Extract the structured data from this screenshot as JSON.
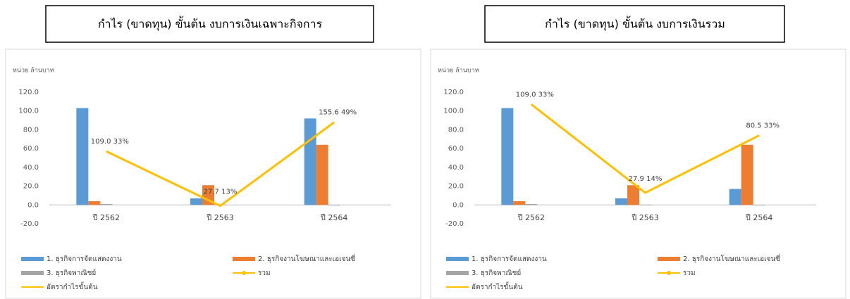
{
  "chart_data": [
    {
      "type": "bar",
      "title": "กำไร (ขาดทุน) ขั้นต้น งบการเงินเฉพาะกิจการ",
      "unit_label": "หน่วย ล้านบาท",
      "categories": [
        "ปี 2562",
        "ปี 2563",
        "ปี 2564"
      ],
      "ylim": [
        -20,
        120
      ],
      "yticks": [
        {
          "value": -20,
          "label": "-20.0"
        },
        {
          "value": 0,
          "label": "0.0"
        },
        {
          "value": 20,
          "label": "20.0"
        },
        {
          "value": 40,
          "label": "40.0"
        },
        {
          "value": 60,
          "label": "60.0"
        },
        {
          "value": 80,
          "label": "80.0"
        },
        {
          "value": 100,
          "label": "100.0"
        },
        {
          "value": 120,
          "label": "120.0"
        }
      ],
      "series": [
        {
          "name": "1. ธุรกิจการจัดแสดงงาน",
          "color": "#5b9bd5",
          "values": [
            103,
            7,
            92
          ]
        },
        {
          "name": "2. ธุรกิจงานโฆษณาและเอเจนซี่",
          "color": "#ed7d31",
          "values": [
            4,
            21,
            64
          ]
        },
        {
          "name": "3. ธุรกิจพาณิชย์",
          "color": "#a5a5a5",
          "values": [
            1,
            0.5,
            -0.5
          ]
        },
        {
          "name": "รวม",
          "color": "#ffc000",
          "marker": true
        },
        {
          "name": "อัตรากำไรขั้นต้น",
          "color": "#ffc000",
          "type": "line",
          "values": [
            57,
            -1,
            88
          ]
        }
      ],
      "annotations": [
        "109.0   33%",
        "27.7   13%",
        "155.6   49%"
      ]
    },
    {
      "type": "bar",
      "title": "กำไร (ขาดทุน) ขั้นต้น งบการเงินรวม",
      "unit_label": "หน่วย ล้านบาท",
      "categories": [
        "ปี 2562",
        "ปี 2563",
        "ปี 2564"
      ],
      "ylim": [
        -20,
        120
      ],
      "yticks": [
        {
          "value": -20,
          "label": "-20.0"
        },
        {
          "value": 0,
          "label": "0.0"
        },
        {
          "value": 20,
          "label": "20.0"
        },
        {
          "value": 40,
          "label": "40.0"
        },
        {
          "value": 60,
          "label": "60.0"
        },
        {
          "value": 80,
          "label": "80.0"
        },
        {
          "value": 100,
          "label": "100.0"
        },
        {
          "value": 120,
          "label": "120.0"
        }
      ],
      "series": [
        {
          "name": "1. ธุรกิจการจัดแสดงงาน",
          "color": "#5b9bd5",
          "values": [
            103,
            7,
            17
          ]
        },
        {
          "name": "2. ธุรกิจงานโฆษณาและเอเจนซี่",
          "color": "#ed7d31",
          "values": [
            4,
            21,
            64
          ]
        },
        {
          "name": "3. ธุรกิจพาณิชย์",
          "color": "#a5a5a5",
          "values": [
            1,
            0.3,
            -0.5
          ]
        },
        {
          "name": "รวม",
          "color": "#ffc000",
          "marker": true
        },
        {
          "name": "อัตรากำไรขั้นต้น",
          "color": "#ffc000",
          "type": "line",
          "values": [
            107,
            13,
            74
          ]
        }
      ],
      "annotations": [
        "109.0 33%",
        "27.9 14%",
        "80.5 33%"
      ]
    }
  ]
}
